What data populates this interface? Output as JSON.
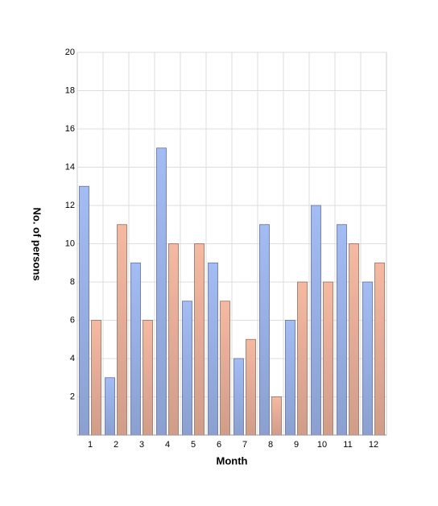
{
  "chart_data": {
    "type": "bar",
    "x_label": "Month",
    "y_label": "No. of persons",
    "categories": [
      "1",
      "2",
      "3",
      "4",
      "5",
      "6",
      "7",
      "8",
      "9",
      "10",
      "11",
      "12"
    ],
    "series": [
      {
        "color": "#a3bcf5",
        "values": [
          13,
          3,
          9,
          15,
          7,
          9,
          4,
          11,
          6,
          12,
          11,
          8
        ]
      },
      {
        "color": "#f5b9a1",
        "values": [
          6,
          11,
          6,
          10,
          10,
          7,
          5,
          2,
          8,
          8,
          10,
          9
        ]
      }
    ],
    "ylim": [
      0,
      20
    ],
    "yticks": [
      2,
      4,
      6,
      8,
      10,
      12,
      14,
      16,
      18,
      20
    ],
    "grid": true
  }
}
